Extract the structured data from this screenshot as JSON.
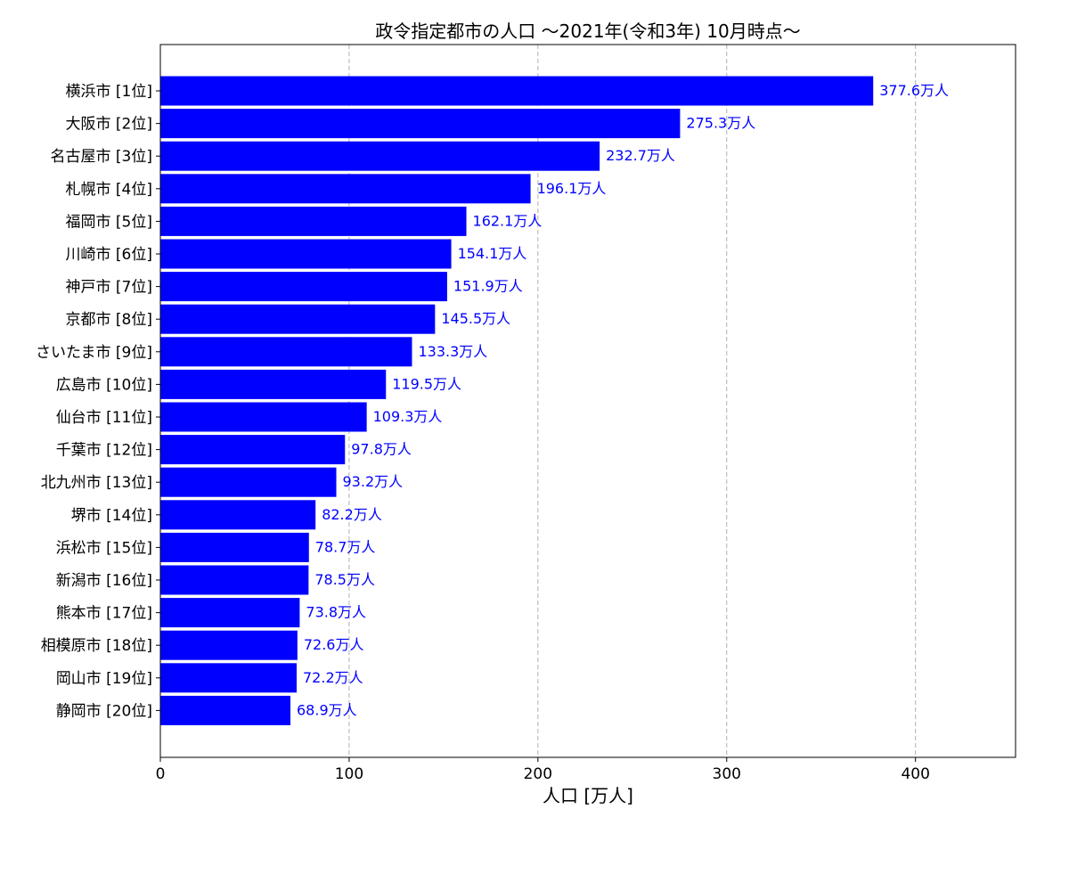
{
  "chart_data": {
    "type": "bar",
    "orientation": "horizontal",
    "title": "政令指定都市の人口 〜2021年(令和3年) 10月時点〜",
    "xlabel": "人口 [万人]",
    "ylabel": "",
    "xlim": [
      0,
      453
    ],
    "xticks": [
      0,
      100,
      200,
      300,
      400
    ],
    "grid": "x-dashed",
    "bar_color": "#0000ff",
    "label_color": "#0000ff",
    "value_suffix": "万人",
    "categories": [
      "横浜市 [1位]",
      "大阪市 [2位]",
      "名古屋市 [3位]",
      "札幌市 [4位]",
      "福岡市 [5位]",
      "川崎市 [6位]",
      "神戸市 [7位]",
      "京都市 [8位]",
      "さいたま市 [9位]",
      "広島市 [10位]",
      "仙台市 [11位]",
      "千葉市 [12位]",
      "北九州市 [13位]",
      "堺市 [14位]",
      "浜松市 [15位]",
      "新潟市 [16位]",
      "熊本市 [17位]",
      "相模原市 [18位]",
      "岡山市 [19位]",
      "静岡市 [20位]"
    ],
    "values": [
      377.6,
      275.3,
      232.7,
      196.1,
      162.1,
      154.1,
      151.9,
      145.5,
      133.3,
      119.5,
      109.3,
      97.8,
      93.2,
      82.2,
      78.7,
      78.5,
      73.8,
      72.6,
      72.2,
      68.9
    ]
  }
}
